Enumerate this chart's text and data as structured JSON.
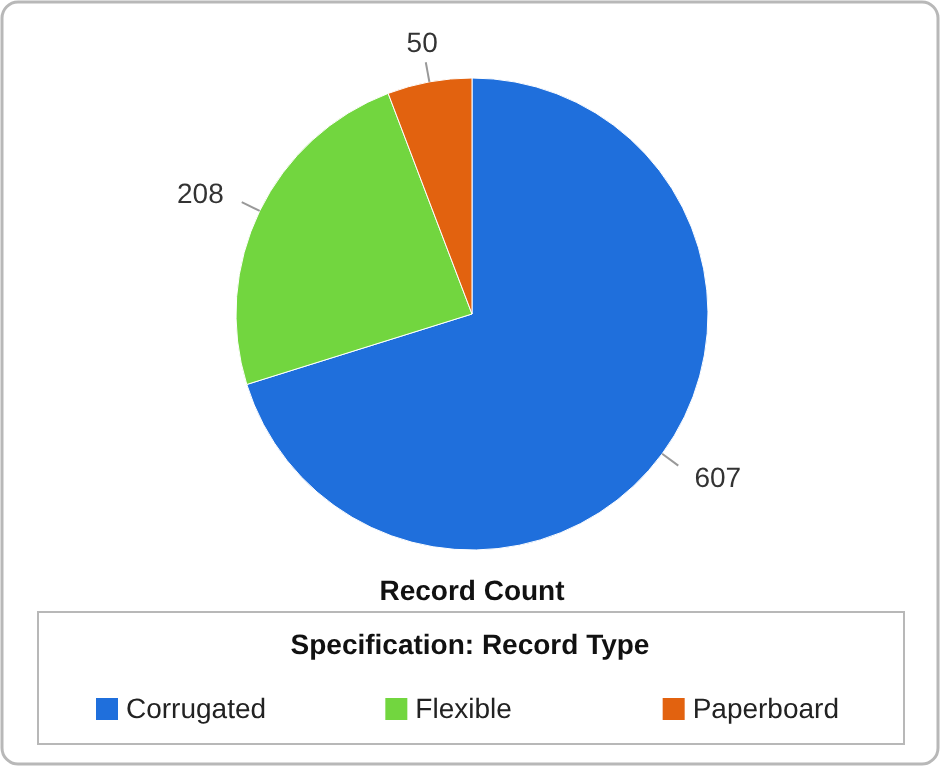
{
  "chart_data": {
    "type": "pie",
    "title": "Record Count",
    "legend_title": "Specification: Record Type",
    "categories": [
      "Corrugated",
      "Flexible",
      "Paperboard"
    ],
    "values": [
      607,
      208,
      50
    ],
    "colors": [
      "#1f6fdc",
      "#72d63f",
      "#e2620f"
    ],
    "data_labels": true,
    "legend": "bottom"
  }
}
